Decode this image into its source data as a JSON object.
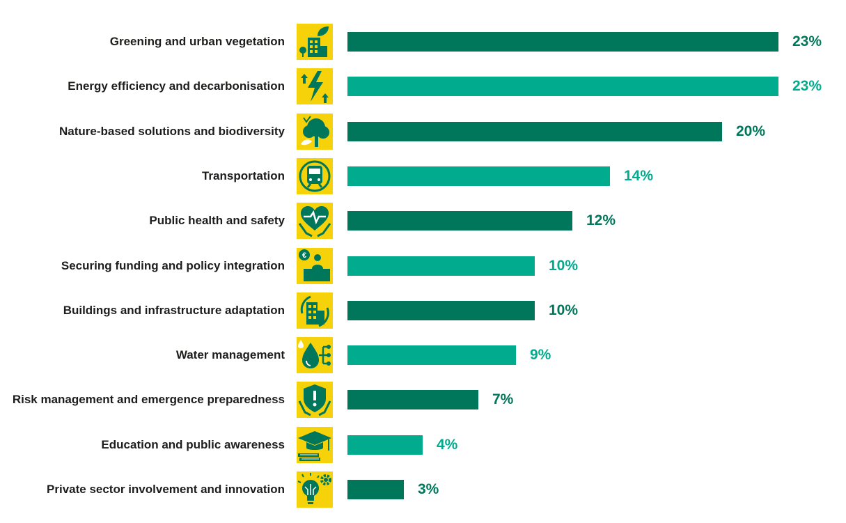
{
  "colors": {
    "dark": "#00765a",
    "light": "#00ab8e",
    "icon_bg": "#f5d20a",
    "text": "#1d1d1b"
  },
  "chart_data": {
    "type": "bar",
    "orientation": "horizontal",
    "title": "",
    "xlabel": "",
    "ylabel": "",
    "xlim": [
      0,
      23
    ],
    "grid": false,
    "categories": [
      "Greening and urban vegetation",
      "Energy efficiency and decarbonisation",
      "Nature-based solutions and biodiversity",
      "Transportation",
      "Public health and safety",
      "Securing funding and policy integration",
      "Buildings and infrastructure adaptation",
      "Water management",
      "Risk management and emergence preparedness",
      "Education and public awareness",
      "Private sector involvement and innovation"
    ],
    "values": [
      23,
      23,
      20,
      14,
      12,
      10,
      10,
      9,
      7,
      4,
      3
    ],
    "value_labels": [
      "23%",
      "23%",
      "20%",
      "14%",
      "12%",
      "10%",
      "10%",
      "9%",
      "7%",
      "4%",
      "3%"
    ],
    "bar_colors": [
      "dark",
      "light",
      "dark",
      "light",
      "dark",
      "light",
      "dark",
      "light",
      "dark",
      "light",
      "dark"
    ],
    "icons": [
      "green-building-icon",
      "energy-lightning-icon",
      "tree-icon",
      "train-icon",
      "heart-health-icon",
      "funding-podium-icon",
      "building-adaptation-icon",
      "water-drop-icon",
      "shield-alert-icon",
      "graduation-books-icon",
      "lightbulb-gear-icon"
    ]
  }
}
